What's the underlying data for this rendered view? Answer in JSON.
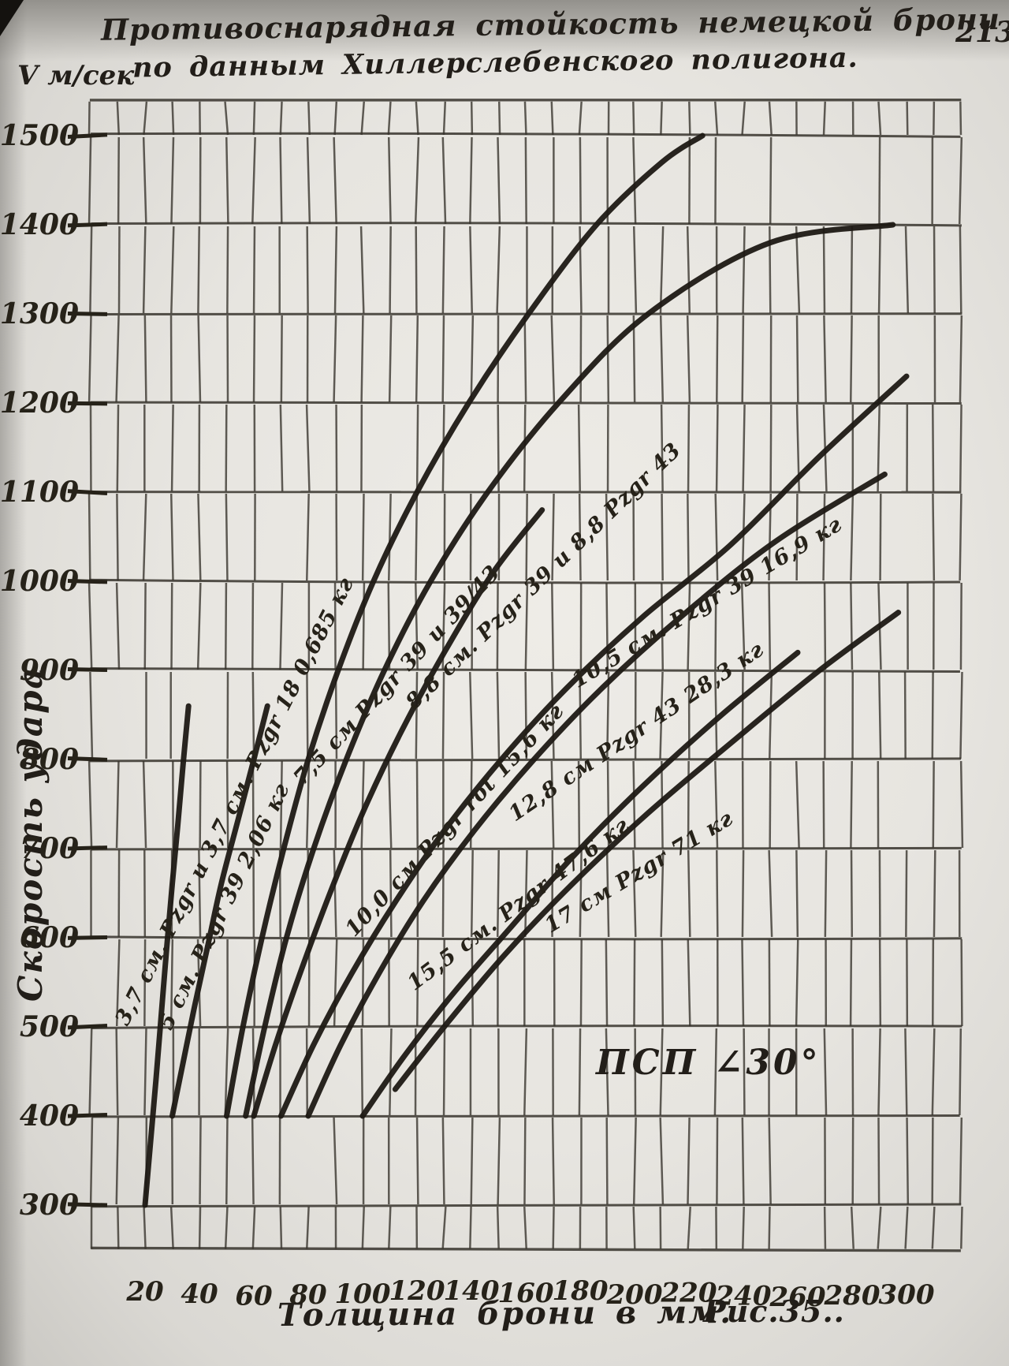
{
  "page_number": "213",
  "title": {
    "line1": "Противоснарядная  стойкость  немецкой  брони",
    "line2": "по данным Хиллерслебенского полигона."
  },
  "axes": {
    "y_unit": "V м/сек",
    "y_title": "Скорость удара",
    "x_title": "Толщина брони в мм.",
    "y_ticks": [
      300,
      400,
      500,
      600,
      700,
      800,
      900,
      1000,
      1100,
      1200,
      1300,
      1400,
      1500
    ],
    "x_ticks": [
      20,
      40,
      60,
      80,
      100,
      120,
      140,
      160,
      180,
      200,
      220,
      240,
      260,
      280,
      300
    ]
  },
  "annotation": "ПСП ∠30°",
  "caption": "Рис.35..",
  "colors": {
    "ink": "#262219",
    "curve_ink": "#1d1914",
    "grid_ink": "#36322b",
    "paper": "#e8e6e1"
  },
  "chart_data": {
    "type": "line",
    "title": "Противоснарядная стойкость немецкой брони по данным Хиллерслебенского полигона",
    "xlabel": "Толщина брони в мм",
    "ylabel": "Скорость удара, V м/сек",
    "xlim": [
      0,
      320
    ],
    "ylim": [
      250,
      1540
    ],
    "x_tick_values": [
      20,
      40,
      60,
      80,
      100,
      120,
      140,
      160,
      180,
      200,
      220,
      240,
      260,
      280,
      300
    ],
    "y_tick_values": [
      300,
      400,
      500,
      600,
      700,
      800,
      900,
      1000,
      1100,
      1200,
      1300,
      1400,
      1500
    ],
    "grid": "on",
    "legend_position": "labels-along-curves",
    "annotation": "ПСП ∠30°",
    "series": [
      {
        "name": "3,7 см. Pzgr и 3,7 см. Pzgr 18 0,685 кг",
        "points": [
          [
            20,
            300
          ],
          [
            22,
            370
          ],
          [
            24,
            440
          ],
          [
            26,
            515
          ],
          [
            28,
            590
          ],
          [
            30,
            660
          ],
          [
            32,
            725
          ],
          [
            34,
            795
          ],
          [
            36,
            860
          ]
        ],
        "label": {
          "mm": 13.5,
          "v": 500,
          "angle": -63
        }
      },
      {
        "name": "5 см. Pzgr 39 2,06 кг",
        "points": [
          [
            30,
            400
          ],
          [
            34,
            460
          ],
          [
            38,
            520
          ],
          [
            43,
            590
          ],
          [
            48,
            660
          ],
          [
            54,
            730
          ],
          [
            60,
            800
          ],
          [
            65,
            860
          ]
        ],
        "label": {
          "mm": 29.5,
          "v": 495,
          "angle": -64
        }
      },
      {
        "name": "7,5 см Pzgr 39 и 39/43",
        "points": [
          [
            50,
            400
          ],
          [
            56,
            500
          ],
          [
            63,
            600
          ],
          [
            71,
            700
          ],
          [
            80,
            800
          ],
          [
            91,
            900
          ],
          [
            104,
            1000
          ],
          [
            120,
            1100
          ],
          [
            139,
            1200
          ],
          [
            161,
            1300
          ],
          [
            186,
            1400
          ],
          [
            210,
            1470
          ],
          [
            225,
            1500
          ]
        ],
        "label": {
          "mm": 78,
          "v": 770,
          "angle": -47
        }
      },
      {
        "name": "10,0 см Pzgr rot 15,6 кг",
        "points": [
          [
            60,
            400
          ],
          [
            68,
            480
          ],
          [
            77,
            560
          ],
          [
            88,
            650
          ],
          [
            100,
            740
          ],
          [
            114,
            830
          ],
          [
            130,
            920
          ],
          [
            148,
            1010
          ],
          [
            166,
            1080
          ]
        ],
        "label": {
          "mm": 97,
          "v": 600,
          "angle": -47
        }
      },
      {
        "name": "8,8 см. Pzgr 39 и 8,8 Pzgr 43",
        "points": [
          [
            57,
            400
          ],
          [
            64,
            500
          ],
          [
            72,
            600
          ],
          [
            82,
            700
          ],
          [
            94,
            800
          ],
          [
            108,
            900
          ],
          [
            125,
            1000
          ],
          [
            146,
            1100
          ],
          [
            172,
            1200
          ],
          [
            205,
            1300
          ],
          [
            250,
            1380
          ],
          [
            295,
            1400
          ]
        ],
        "label": {
          "mm": 119,
          "v": 855,
          "angle": -44
        }
      },
      {
        "name": "10,5 см. Pzgr 39 16,9 кг",
        "points": [
          [
            70,
            400
          ],
          [
            82,
            480
          ],
          [
            96,
            560
          ],
          [
            112,
            640
          ],
          [
            130,
            720
          ],
          [
            151,
            800
          ],
          [
            175,
            880
          ],
          [
            203,
            960
          ],
          [
            235,
            1040
          ],
          [
            268,
            1140
          ],
          [
            300,
            1230
          ]
        ],
        "label": {
          "mm": 179,
          "v": 880,
          "angle": -31
        }
      },
      {
        "name": "12,8 см Pzgr 43 28,3 кг",
        "points": [
          [
            80,
            400
          ],
          [
            92,
            480
          ],
          [
            106,
            560
          ],
          [
            122,
            640
          ],
          [
            141,
            720
          ],
          [
            163,
            800
          ],
          [
            188,
            880
          ],
          [
            217,
            960
          ],
          [
            252,
            1045
          ],
          [
            292,
            1120
          ]
        ],
        "label": {
          "mm": 156,
          "v": 730,
          "angle": -34
        }
      },
      {
        "name": "15,5 см. Pzgr 47,6 кг",
        "points": [
          [
            100,
            400
          ],
          [
            116,
            470
          ],
          [
            134,
            540
          ],
          [
            154,
            610
          ],
          [
            177,
            690
          ],
          [
            203,
            770
          ],
          [
            232,
            850
          ],
          [
            260,
            920
          ]
        ],
        "label": {
          "mm": 119,
          "v": 540,
          "angle": -37
        }
      },
      {
        "name": "17 см Pzgr 71 кг",
        "points": [
          [
            112,
            430
          ],
          [
            130,
            500
          ],
          [
            152,
            580
          ],
          [
            177,
            660
          ],
          [
            205,
            740
          ],
          [
            236,
            820
          ],
          [
            268,
            900
          ],
          [
            297,
            965
          ]
        ],
        "label": {
          "mm": 169,
          "v": 605,
          "angle": -31
        }
      }
    ]
  }
}
